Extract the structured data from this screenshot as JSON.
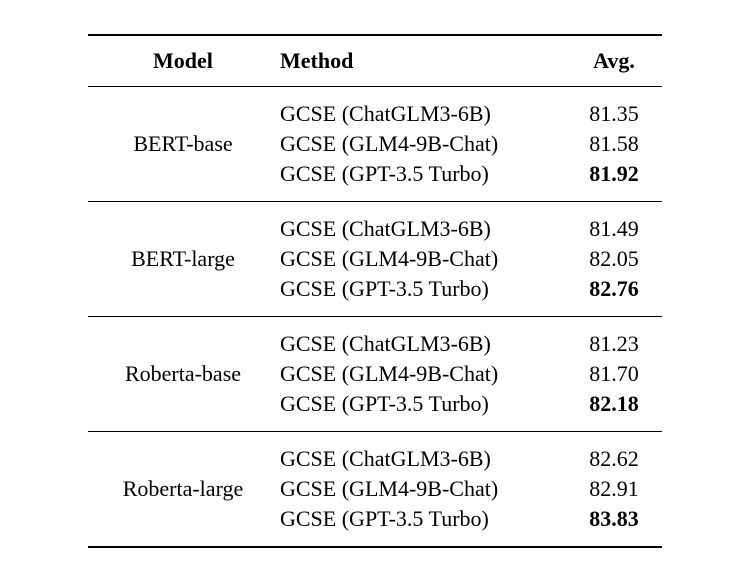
{
  "table": {
    "headers": {
      "model": "Model",
      "method": "Method",
      "avg": "Avg."
    },
    "sections": [
      {
        "model": "BERT-base",
        "rows": [
          {
            "method": "GCSE (ChatGLM3-6B)",
            "avg": "81.35",
            "bold": false
          },
          {
            "method": "GCSE (GLM4-9B-Chat)",
            "avg": "81.58",
            "bold": false
          },
          {
            "method": "GCSE (GPT-3.5 Turbo)",
            "avg": "81.92",
            "bold": true
          }
        ]
      },
      {
        "model": "BERT-large",
        "rows": [
          {
            "method": "GCSE (ChatGLM3-6B)",
            "avg": "81.49",
            "bold": false
          },
          {
            "method": "GCSE (GLM4-9B-Chat)",
            "avg": "82.05",
            "bold": false
          },
          {
            "method": "GCSE (GPT-3.5 Turbo)",
            "avg": "82.76",
            "bold": true
          }
        ]
      },
      {
        "model": "Roberta-base",
        "rows": [
          {
            "method": "GCSE (ChatGLM3-6B)",
            "avg": "81.23",
            "bold": false
          },
          {
            "method": "GCSE (GLM4-9B-Chat)",
            "avg": "81.70",
            "bold": false
          },
          {
            "method": "GCSE (GPT-3.5 Turbo)",
            "avg": "82.18",
            "bold": true
          }
        ]
      },
      {
        "model": "Roberta-large",
        "rows": [
          {
            "method": "GCSE (ChatGLM3-6B)",
            "avg": "82.62",
            "bold": false
          },
          {
            "method": "GCSE (GLM4-9B-Chat)",
            "avg": "82.91",
            "bold": false
          },
          {
            "method": "GCSE (GPT-3.5 Turbo)",
            "avg": "83.83",
            "bold": true
          }
        ]
      }
    ],
    "colors": {
      "text": "#000000",
      "rule": "#000000",
      "background": "#ffffff"
    }
  }
}
